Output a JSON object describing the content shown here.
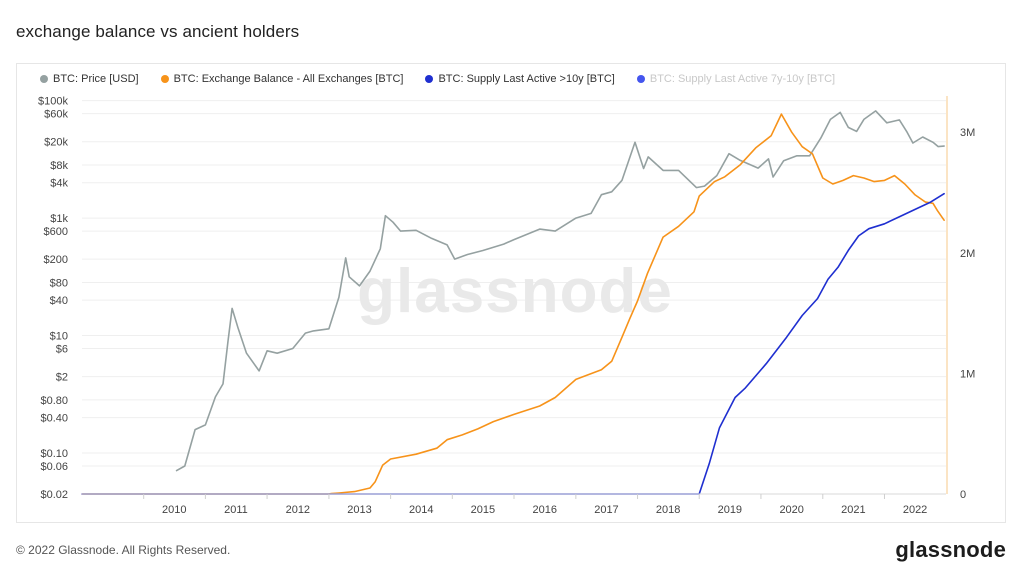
{
  "page": {
    "title": "exchange balance vs ancient holders",
    "copyright": "© 2022 Glassnode. All Rights Reserved.",
    "brand": "glassnode",
    "watermark": "glassnode"
  },
  "legend": [
    {
      "label": "BTC: Price [USD]",
      "color": "#95a1a1",
      "enabled": true
    },
    {
      "label": "BTC: Exchange Balance - All Exchanges [BTC]",
      "color": "#f7931a",
      "enabled": true
    },
    {
      "label": "BTC: Supply Last Active >10y [BTC]",
      "color": "#1f2fd0",
      "enabled": true
    },
    {
      "label": "BTC: Supply Last Active 7y-10y [BTC]",
      "color": "#4455ee",
      "enabled": false
    }
  ],
  "chart_data": {
    "type": "line",
    "x_range": [
      "2009-01-01",
      "2022-12-31"
    ],
    "x_ticks": [
      "2010",
      "2011",
      "2012",
      "2013",
      "2014",
      "2015",
      "2016",
      "2017",
      "2018",
      "2019",
      "2020",
      "2021",
      "2022"
    ],
    "left_axis": {
      "scale": "log",
      "range": [
        0.02,
        120000
      ],
      "ticks": [
        {
          "v": 100000,
          "label": "$100k"
        },
        {
          "v": 60000,
          "label": "$60k"
        },
        {
          "v": 20000,
          "label": "$20k"
        },
        {
          "v": 8000,
          "label": "$8k"
        },
        {
          "v": 4000,
          "label": "$4k"
        },
        {
          "v": 1000,
          "label": "$1k"
        },
        {
          "v": 600,
          "label": "$600"
        },
        {
          "v": 200,
          "label": "$200"
        },
        {
          "v": 80,
          "label": "$80"
        },
        {
          "v": 40,
          "label": "$40"
        },
        {
          "v": 10,
          "label": "$10"
        },
        {
          "v": 6,
          "label": "$6"
        },
        {
          "v": 2,
          "label": "$2"
        },
        {
          "v": 0.8,
          "label": "$0.80"
        },
        {
          "v": 0.4,
          "label": "$0.40"
        },
        {
          "v": 0.1,
          "label": "$0.10"
        },
        {
          "v": 0.06,
          "label": "$0.06"
        },
        {
          "v": 0.02,
          "label": "$0.02"
        }
      ]
    },
    "right_axis": {
      "scale": "linear",
      "range": [
        0,
        3300000
      ],
      "ticks": [
        {
          "v": 3000000,
          "label": "3M"
        },
        {
          "v": 2000000,
          "label": "2M"
        },
        {
          "v": 1000000,
          "label": "1M"
        },
        {
          "v": 0,
          "label": "0"
        }
      ]
    },
    "grid": true,
    "legend_position": "top-left",
    "series": [
      {
        "name": "BTC: Price [USD]",
        "axis": "left",
        "color": "#95a1a1",
        "points": [
          [
            "2010-07-15",
            0.05
          ],
          [
            "2010-09-01",
            0.06
          ],
          [
            "2010-11-01",
            0.25
          ],
          [
            "2011-01-01",
            0.3
          ],
          [
            "2011-03-01",
            0.9
          ],
          [
            "2011-04-15",
            1.5
          ],
          [
            "2011-05-15",
            8
          ],
          [
            "2011-06-08",
            29
          ],
          [
            "2011-07-15",
            13
          ],
          [
            "2011-09-01",
            5
          ],
          [
            "2011-11-15",
            2.5
          ],
          [
            "2012-01-01",
            5.5
          ],
          [
            "2012-03-01",
            5
          ],
          [
            "2012-06-01",
            6
          ],
          [
            "2012-08-15",
            11
          ],
          [
            "2012-10-01",
            12
          ],
          [
            "2013-01-01",
            13
          ],
          [
            "2013-03-01",
            45
          ],
          [
            "2013-04-10",
            210
          ],
          [
            "2013-05-01",
            100
          ],
          [
            "2013-07-01",
            70
          ],
          [
            "2013-09-01",
            125
          ],
          [
            "2013-11-01",
            300
          ],
          [
            "2013-12-01",
            1100
          ],
          [
            "2014-01-15",
            850
          ],
          [
            "2014-03-01",
            600
          ],
          [
            "2014-06-01",
            620
          ],
          [
            "2014-09-01",
            450
          ],
          [
            "2014-12-01",
            350
          ],
          [
            "2015-01-15",
            200
          ],
          [
            "2015-04-01",
            240
          ],
          [
            "2015-07-01",
            280
          ],
          [
            "2015-11-01",
            360
          ],
          [
            "2016-01-01",
            430
          ],
          [
            "2016-06-01",
            650
          ],
          [
            "2016-09-01",
            600
          ],
          [
            "2017-01-01",
            1000
          ],
          [
            "2017-04-01",
            1200
          ],
          [
            "2017-06-01",
            2500
          ],
          [
            "2017-08-01",
            2800
          ],
          [
            "2017-10-01",
            4400
          ],
          [
            "2017-12-17",
            19500
          ],
          [
            "2018-02-06",
            7000
          ],
          [
            "2018-03-05",
            11000
          ],
          [
            "2018-06-01",
            6500
          ],
          [
            "2018-09-01",
            6500
          ],
          [
            "2018-12-15",
            3300
          ],
          [
            "2019-02-01",
            3500
          ],
          [
            "2019-04-15",
            5300
          ],
          [
            "2019-06-26",
            12500
          ],
          [
            "2019-09-01",
            9600
          ],
          [
            "2019-12-15",
            7100
          ],
          [
            "2020-02-15",
            10200
          ],
          [
            "2020-03-13",
            5000
          ],
          [
            "2020-05-15",
            9500
          ],
          [
            "2020-08-01",
            11500
          ],
          [
            "2020-10-15",
            11500
          ],
          [
            "2020-12-20",
            23000
          ],
          [
            "2021-02-15",
            48000
          ],
          [
            "2021-04-14",
            63000
          ],
          [
            "2021-06-01",
            35000
          ],
          [
            "2021-07-20",
            30000
          ],
          [
            "2021-09-01",
            48000
          ],
          [
            "2021-11-10",
            67000
          ],
          [
            "2022-01-15",
            42000
          ],
          [
            "2022-03-30",
            47000
          ],
          [
            "2022-05-15",
            29000
          ],
          [
            "2022-06-18",
            19000
          ],
          [
            "2022-08-15",
            24000
          ],
          [
            "2022-10-15",
            19500
          ],
          [
            "2022-11-15",
            16500
          ],
          [
            "2022-12-20",
            16800
          ]
        ]
      },
      {
        "name": "BTC: Exchange Balance - All Exchanges [BTC]",
        "axis": "right",
        "color": "#f7931a",
        "points": [
          [
            "2009-01-03",
            0
          ],
          [
            "2012-12-31",
            0
          ],
          [
            "2013-01-15",
            3000
          ],
          [
            "2013-03-01",
            8000
          ],
          [
            "2013-06-01",
            20000
          ],
          [
            "2013-09-01",
            50000
          ],
          [
            "2013-10-01",
            100000
          ],
          [
            "2013-11-15",
            240000
          ],
          [
            "2014-01-01",
            290000
          ],
          [
            "2014-06-01",
            330000
          ],
          [
            "2014-10-01",
            380000
          ],
          [
            "2014-12-01",
            450000
          ],
          [
            "2015-03-01",
            490000
          ],
          [
            "2015-06-01",
            540000
          ],
          [
            "2015-09-01",
            600000
          ],
          [
            "2016-01-01",
            660000
          ],
          [
            "2016-06-01",
            730000
          ],
          [
            "2016-09-01",
            800000
          ],
          [
            "2017-01-01",
            950000
          ],
          [
            "2017-06-01",
            1030000
          ],
          [
            "2017-08-01",
            1100000
          ],
          [
            "2017-10-01",
            1300000
          ],
          [
            "2017-11-15",
            1450000
          ],
          [
            "2018-01-01",
            1600000
          ],
          [
            "2018-03-01",
            1830000
          ],
          [
            "2018-06-01",
            2130000
          ],
          [
            "2018-09-01",
            2220000
          ],
          [
            "2018-12-01",
            2340000
          ],
          [
            "2019-01-01",
            2470000
          ],
          [
            "2019-04-01",
            2590000
          ],
          [
            "2019-06-01",
            2630000
          ],
          [
            "2019-09-01",
            2730000
          ],
          [
            "2019-12-01",
            2870000
          ],
          [
            "2020-03-01",
            2970000
          ],
          [
            "2020-05-01",
            3150000
          ],
          [
            "2020-07-01",
            3000000
          ],
          [
            "2020-09-01",
            2880000
          ],
          [
            "2020-11-01",
            2820000
          ],
          [
            "2021-01-01",
            2620000
          ],
          [
            "2021-03-01",
            2570000
          ],
          [
            "2021-05-01",
            2600000
          ],
          [
            "2021-07-01",
            2640000
          ],
          [
            "2021-09-01",
            2620000
          ],
          [
            "2021-11-01",
            2590000
          ],
          [
            "2022-01-01",
            2600000
          ],
          [
            "2022-03-01",
            2640000
          ],
          [
            "2022-05-01",
            2570000
          ],
          [
            "2022-07-01",
            2480000
          ],
          [
            "2022-09-01",
            2420000
          ],
          [
            "2022-10-15",
            2410000
          ],
          [
            "2022-11-10",
            2350000
          ],
          [
            "2022-12-20",
            2270000
          ]
        ]
      },
      {
        "name": "BTC: Supply Last Active >10y [BTC]",
        "axis": "right",
        "color": "#1f2fd0",
        "points": [
          [
            "2009-01-03",
            0
          ],
          [
            "2019-01-01",
            0
          ],
          [
            "2019-03-01",
            250000
          ],
          [
            "2019-05-01",
            550000
          ],
          [
            "2019-08-01",
            800000
          ],
          [
            "2019-10-01",
            880000
          ],
          [
            "2020-02-01",
            1080000
          ],
          [
            "2020-06-01",
            1300000
          ],
          [
            "2020-09-01",
            1480000
          ],
          [
            "2020-12-01",
            1620000
          ],
          [
            "2021-02-01",
            1780000
          ],
          [
            "2021-04-01",
            1880000
          ],
          [
            "2021-06-01",
            2020000
          ],
          [
            "2021-08-01",
            2140000
          ],
          [
            "2021-10-01",
            2200000
          ],
          [
            "2022-01-01",
            2240000
          ],
          [
            "2022-04-01",
            2300000
          ],
          [
            "2022-07-01",
            2360000
          ],
          [
            "2022-10-01",
            2420000
          ],
          [
            "2022-12-20",
            2490000
          ]
        ]
      }
    ]
  }
}
